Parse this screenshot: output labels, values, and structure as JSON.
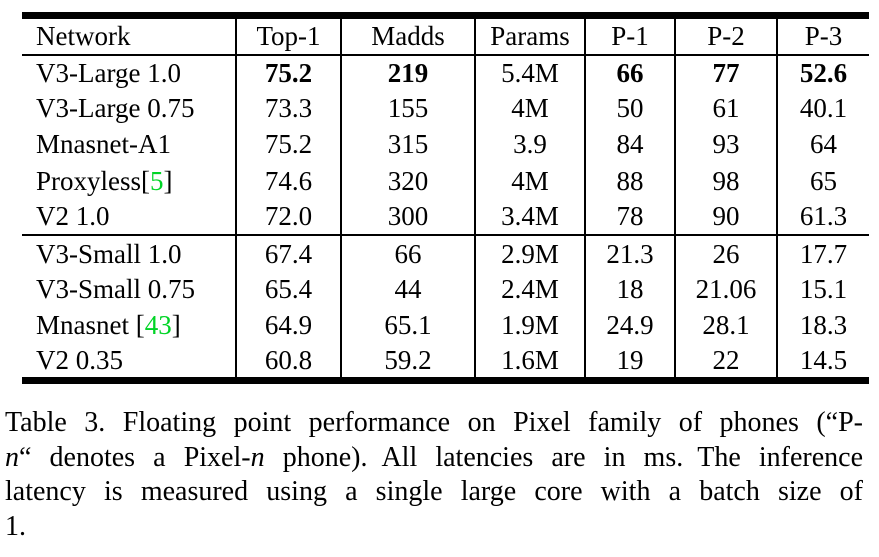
{
  "colors": {
    "text": "#000000",
    "background": "#ffffff",
    "citation_green": "#00d426"
  },
  "table": {
    "columns": [
      "Network",
      "Top-1",
      "Madds",
      "Params",
      "P-1",
      "P-2",
      "P-3"
    ],
    "groups": [
      {
        "rows": [
          {
            "name": [
              {
                "t": "V3-Large 1.0"
              }
            ],
            "values": [
              "75.2",
              "219",
              "5.4M",
              "66",
              "77",
              "52.6"
            ],
            "bold": [
              1,
              1,
              0,
              1,
              1,
              1
            ]
          },
          {
            "name": [
              {
                "t": "V3-Large 0.75"
              }
            ],
            "values": [
              "73.3",
              "155",
              "4M",
              "50",
              "61",
              "40.1"
            ]
          },
          {
            "name": [
              {
                "t": "Mnasnet-A1"
              }
            ],
            "values": [
              "75.2",
              "315",
              "3.9",
              "84",
              "93",
              "64"
            ]
          },
          {
            "name": [
              {
                "t": "Proxyless["
              },
              {
                "t": "5",
                "cite": true
              },
              {
                "t": "]"
              }
            ],
            "values": [
              "74.6",
              "320",
              "4M",
              "88",
              "98",
              "65"
            ]
          },
          {
            "name": [
              {
                "t": "V2 1.0"
              }
            ],
            "values": [
              "72.0",
              "300",
              "3.4M",
              "78",
              "90",
              "61.3"
            ]
          }
        ]
      },
      {
        "rows": [
          {
            "name": [
              {
                "t": "V3-Small 1.0"
              }
            ],
            "values": [
              "67.4",
              "66",
              "2.9M",
              "21.3",
              "26",
              "17.7"
            ]
          },
          {
            "name": [
              {
                "t": "V3-Small 0.75"
              }
            ],
            "values": [
              "65.4",
              "44",
              "2.4M",
              "18",
              "21.06",
              "15.1"
            ]
          },
          {
            "name": [
              {
                "t": "Mnasnet ["
              },
              {
                "t": "43",
                "cite": true
              },
              {
                "t": "]"
              }
            ],
            "values": [
              "64.9",
              "65.1",
              "1.9M",
              "24.9",
              "28.1",
              "18.3"
            ]
          },
          {
            "name": [
              {
                "t": "V2 0.35"
              }
            ],
            "values": [
              "60.8",
              "59.2",
              "1.6M",
              "19",
              "22",
              "14.5"
            ]
          }
        ]
      }
    ]
  },
  "caption": {
    "lines": [
      {
        "justify": true,
        "segments": [
          {
            "t": "Table 3. Floating point performance on Pixel family of phones (“P-"
          }
        ]
      },
      {
        "justify": true,
        "segments": [
          {
            "t": "n",
            "italic": true
          },
          {
            "t": "“ denotes a Pixel-"
          },
          {
            "t": "n",
            "italic": true
          },
          {
            "t": " phone). All latencies are in ms. The inference"
          }
        ]
      },
      {
        "justify": true,
        "segments": [
          {
            "t": "latency is measured using a single large core with a batch size of"
          }
        ]
      },
      {
        "justify": false,
        "segments": [
          {
            "t": "1."
          }
        ]
      }
    ]
  }
}
